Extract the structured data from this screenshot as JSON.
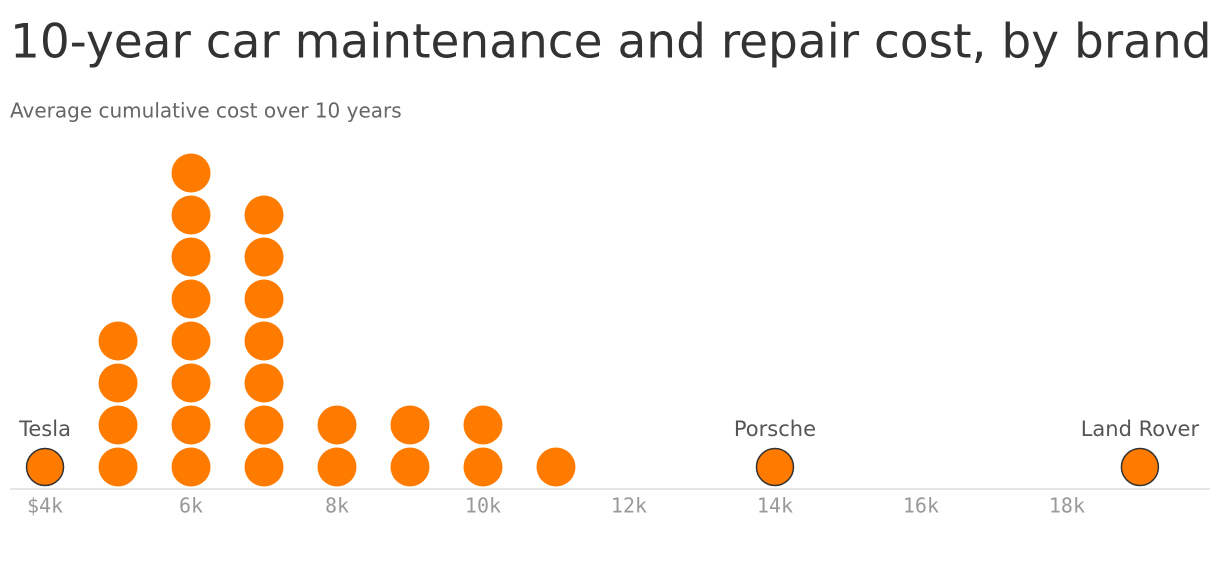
{
  "chart_data": {
    "type": "dot",
    "title": "10-year car maintenance and repair cost, by brand",
    "subtitle": "Average cumulative cost over 10 years",
    "x": [
      4000,
      5000,
      6000,
      7000,
      8000,
      9000,
      10000,
      11000,
      14000,
      19000
    ],
    "counts": [
      1,
      4,
      8,
      7,
      2,
      2,
      2,
      1,
      1,
      1
    ],
    "color": "#ff7b00",
    "xlim": [
      3520,
      19960
    ],
    "xticks": [
      {
        "value": 4000,
        "label": "$4k"
      },
      {
        "value": 6000,
        "label": "6k"
      },
      {
        "value": 8000,
        "label": "8k"
      },
      {
        "value": 10000,
        "label": "10k"
      },
      {
        "value": 12000,
        "label": "12k"
      },
      {
        "value": 14000,
        "label": "14k"
      },
      {
        "value": 16000,
        "label": "16k"
      },
      {
        "value": 18000,
        "label": "18k"
      }
    ],
    "annotations": [
      {
        "text": "Tesla",
        "x": 4000
      },
      {
        "text": "Porsche",
        "x": 14000
      },
      {
        "text": "Land Rover",
        "x": 19000
      }
    ]
  }
}
